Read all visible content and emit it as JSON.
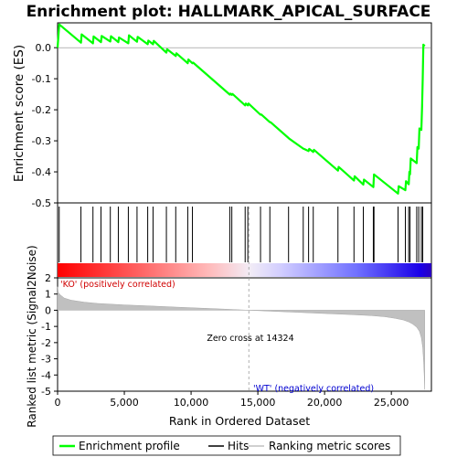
{
  "chart_data": {
    "type": "line",
    "title": "Enrichment plot: HALLMARK_APICAL_SURFACE",
    "xlabel": "Rank in Ordered Dataset",
    "x_ticks": [
      "0",
      "5,000",
      "10,000",
      "15,000",
      "20,000",
      "25,000"
    ],
    "x_tick_values": [
      0,
      5000,
      10000,
      15000,
      20000,
      25000
    ],
    "xlim": [
      0,
      28000
    ],
    "n_genes": 27500,
    "panels": {
      "enrichment": {
        "ylabel": "Enrichment score (ES)",
        "ylim": [
          -0.5,
          0.08
        ],
        "y_ticks": [
          "-0.5",
          "-0.4",
          "-0.3",
          "-0.2",
          "-0.1",
          "0.0"
        ],
        "y_tick_values": [
          -0.5,
          -0.4,
          -0.3,
          -0.2,
          -0.1,
          0.0
        ],
        "line_color": "#00ff00",
        "series": [
          {
            "name": "Enrichment profile",
            "x": [
              0,
              120,
              1750,
              1800,
              2650,
              2700,
              3250,
              3300,
              3950,
              4000,
              4550,
              4600,
              5300,
              5350,
              5950,
              6000,
              6750,
              6800,
              7150,
              7200,
              8150,
              8200,
              8850,
              8900,
              9750,
              9800,
              10100,
              10150,
              12900,
              12950,
              13050,
              13100,
              14050,
              14100,
              14250,
              14300,
              15200,
              15250,
              15900,
              15950,
              17300,
              17350,
              18400,
              18450,
              18800,
              18850,
              19150,
              19200,
              21000,
              21050,
              22200,
              22250,
              22900,
              22950,
              23650,
              23700,
              25500,
              25550,
              26050,
              26100,
              26300,
              26350,
              26400,
              26450,
              26900,
              26950,
              27050,
              27100,
              27250,
              27300,
              27350,
              27400,
              27500
            ],
            "y": [
              0.0,
              0.075,
              0.016,
              0.043,
              0.014,
              0.036,
              0.018,
              0.038,
              0.02,
              0.037,
              0.018,
              0.033,
              0.014,
              0.04,
              0.019,
              0.035,
              0.011,
              0.023,
              0.011,
              0.022,
              -0.016,
              -0.005,
              -0.027,
              -0.018,
              -0.05,
              -0.038,
              -0.05,
              -0.048,
              -0.151,
              -0.148,
              -0.152,
              -0.149,
              -0.186,
              -0.18,
              -0.186,
              -0.18,
              -0.216,
              -0.215,
              -0.24,
              -0.24,
              -0.291,
              -0.293,
              -0.325,
              -0.326,
              -0.333,
              -0.326,
              -0.336,
              -0.329,
              -0.396,
              -0.384,
              -0.428,
              -0.414,
              -0.441,
              -0.425,
              -0.449,
              -0.408,
              -0.47,
              -0.446,
              -0.459,
              -0.43,
              -0.44,
              -0.4,
              -0.408,
              -0.357,
              -0.372,
              -0.32,
              -0.325,
              -0.26,
              -0.265,
              -0.19,
              -0.1,
              0.01,
              0.005
            ]
          }
        ]
      },
      "hits": {
        "hit_ranks": [
          120,
          1750,
          2650,
          3250,
          3950,
          4550,
          5300,
          5950,
          6750,
          7150,
          8150,
          8850,
          9750,
          10100,
          12900,
          13050,
          14050,
          14250,
          15200,
          15900,
          17300,
          18400,
          18800,
          19150,
          21000,
          22200,
          22900,
          23650,
          23700,
          25500,
          26050,
          26300,
          26400,
          26900,
          27050,
          27250,
          27350
        ]
      },
      "ranked_metric": {
        "ylabel": "Ranked list metric (Signal2Noise)",
        "ylim": [
          -5,
          2
        ],
        "y_ticks": [
          "-5",
          "-4",
          "-3",
          "-2",
          "-1",
          "0",
          "1",
          "2"
        ],
        "y_tick_values": [
          -5,
          -4,
          -3,
          -2,
          -1,
          0,
          1,
          2
        ],
        "zero_cross_label": "Zero cross at 14324",
        "zero_cross": 14324,
        "positive_label": "'KO' (positively correlated)",
        "negative_label": "'WT' (negatively correlated)",
        "curve_x": [
          0,
          50,
          200,
          500,
          1000,
          2000,
          3000,
          5000,
          7000,
          9000,
          11000,
          12500,
          14324,
          16000,
          18000,
          20000,
          22000,
          23500,
          24500,
          25300,
          25900,
          26300,
          26600,
          26900,
          27100,
          27250,
          27350,
          27420,
          27470,
          27500
        ],
        "curve_y": [
          1.45,
          1.1,
          0.95,
          0.75,
          0.62,
          0.5,
          0.42,
          0.33,
          0.26,
          0.19,
          0.12,
          0.07,
          0.0,
          -0.06,
          -0.13,
          -0.2,
          -0.27,
          -0.33,
          -0.4,
          -0.5,
          -0.6,
          -0.72,
          -0.85,
          -1.05,
          -1.3,
          -1.7,
          -2.3,
          -3.2,
          -4.2,
          -4.9
        ]
      }
    },
    "legend": {
      "position": "bottom",
      "items": [
        {
          "label": "Enrichment profile",
          "color": "#00ff00"
        },
        {
          "label": "Hits",
          "color": "#000000"
        },
        {
          "label": "Ranking metric scores",
          "color": "#c0c0c0"
        }
      ]
    },
    "colors": {
      "profile": "#00ff00",
      "positive": "#ff0000",
      "negative": "#0000ff",
      "metric_fill": "#c0c0c0"
    }
  }
}
